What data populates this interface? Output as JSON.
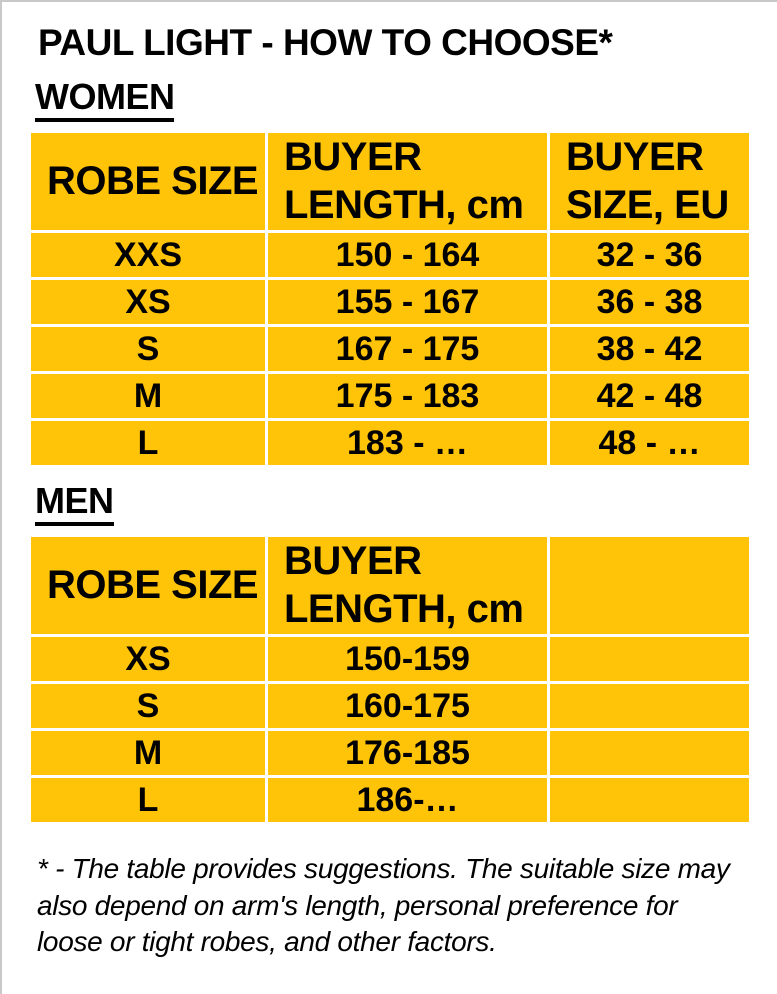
{
  "colors": {
    "table_fill": "#FFC408",
    "cell_border": "#FFFFFF",
    "text": "#000000",
    "page_edge": "#C9C9C9",
    "background": "#FFFFFF"
  },
  "header": {
    "title": "PAUL LIGHT - HOW TO CHOOSE*"
  },
  "women": {
    "heading": "WOMEN",
    "columns": {
      "robe_size": "ROBE SIZE",
      "buyer_length": "BUYER LENGTH, cm",
      "buyer_size_eu": "BUYER SIZE, EU"
    },
    "rows": [
      {
        "size": "XXS",
        "length": "150 - 164",
        "eu": "32 - 36"
      },
      {
        "size": "XS",
        "length": "155 - 167",
        "eu": "36 - 38"
      },
      {
        "size": "S",
        "length": "167 - 175",
        "eu": "38 - 42"
      },
      {
        "size": "M",
        "length": "175 - 183",
        "eu": "42 - 48"
      },
      {
        "size": "L",
        "length": "183 - …",
        "eu": "48 - …"
      }
    ]
  },
  "men": {
    "heading": "MEN",
    "columns": {
      "robe_size": "ROBE SIZE",
      "buyer_length": "BUYER LENGTH, cm",
      "buyer_size_eu": ""
    },
    "rows": [
      {
        "size": "XS",
        "length": "150-159",
        "eu": ""
      },
      {
        "size": "S",
        "length": "160-175",
        "eu": ""
      },
      {
        "size": "M",
        "length": "176-185",
        "eu": ""
      },
      {
        "size": "L",
        "length": "186-…",
        "eu": ""
      }
    ]
  },
  "footnote": "* - The table provides suggestions. The suitable size may also depend on arm's length, personal preference for loose or tight robes, and other factors."
}
